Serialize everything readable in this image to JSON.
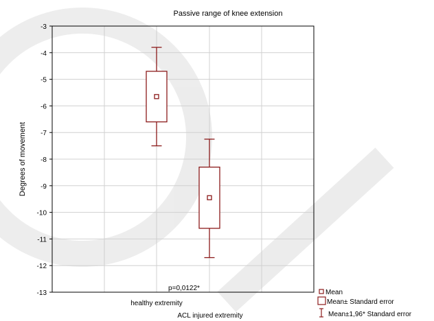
{
  "chart_data": {
    "type": "box",
    "title": "Passive range of knee extension",
    "xlabel": "",
    "ylabel": "Degrees of movement",
    "ylim": [
      -13,
      -3
    ],
    "yticks": [
      -3,
      -4,
      -5,
      -6,
      -7,
      -8,
      -9,
      -10,
      -11,
      -12,
      -13
    ],
    "grid": true,
    "categories": [
      "healthy extremity",
      "ACL injured extremity"
    ],
    "series": [
      {
        "category": "healthy extremity",
        "mean": -5.65,
        "se_low": -6.6,
        "se_high": -4.7,
        "ci_low": -7.5,
        "ci_high": -3.8
      },
      {
        "category": "ACL injured extremity",
        "mean": -9.45,
        "se_low": -10.6,
        "se_high": -8.3,
        "ci_low": -11.7,
        "ci_high": -7.25
      }
    ],
    "annotation": "p=0,0122*",
    "legend": {
      "position": "bottom-right",
      "items": [
        "Mean",
        "Mean± Standard error",
        "Mean±1,96* Standard error"
      ]
    },
    "colors": {
      "series": "#8b1a1a",
      "grid": "#d0d0d0",
      "axis": "#000000"
    }
  }
}
